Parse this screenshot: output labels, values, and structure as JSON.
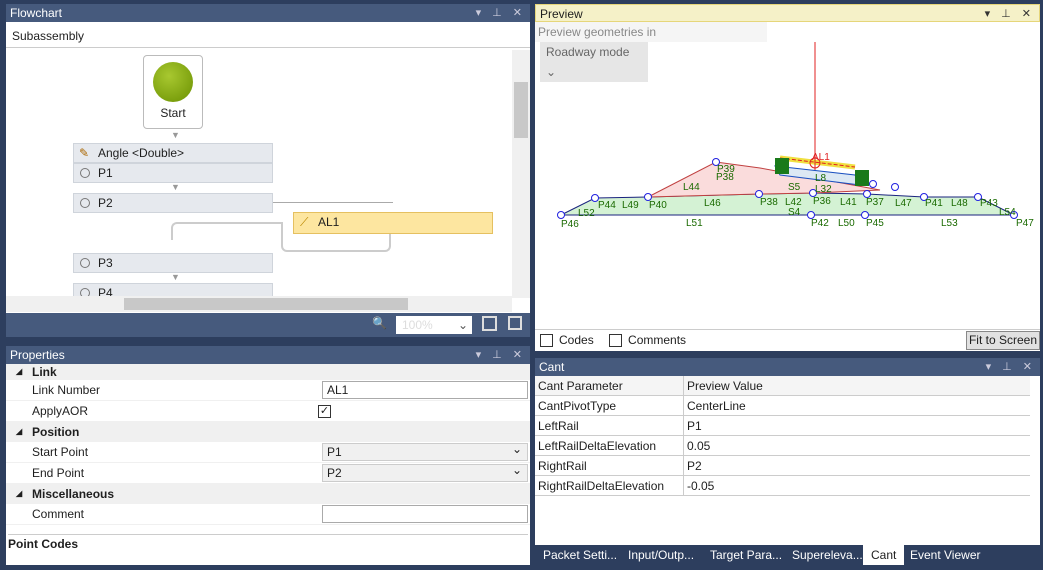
{
  "flowchart": {
    "title": "Flowchart",
    "header": "Subassembly",
    "start": "Start",
    "nodes": [
      "Angle <Double>",
      "P1",
      "P2",
      "P3",
      "P4"
    ],
    "link": "AL1",
    "zoom": "100%"
  },
  "properties": {
    "title": "Properties",
    "cats": [
      "Link",
      "Position",
      "Miscellaneous"
    ],
    "rows": {
      "link_number": {
        "label": "Link Number",
        "value": "AL1"
      },
      "apply_aor": {
        "label": "ApplyAOR",
        "checked": true
      },
      "start_point": {
        "label": "Start Point",
        "value": "P1"
      },
      "end_point": {
        "label": "End Point",
        "value": "P2"
      },
      "comment": {
        "label": "Comment",
        "value": ""
      }
    },
    "footer": "Point Codes"
  },
  "preview": {
    "title": "Preview",
    "geom_label": "Preview geometries in",
    "mode": "Roadway mode",
    "codes": "Codes",
    "comments": "Comments",
    "fit": "Fit to Screen",
    "labels": [
      "AL1",
      "P39",
      "P38",
      "L44",
      "S5",
      "L8",
      "L32",
      "P44",
      "L49",
      "P40",
      "L46",
      "P38",
      "L42",
      "P36",
      "L41",
      "P37",
      "L47",
      "P41",
      "L48",
      "P43",
      "L52",
      "S4",
      "L54",
      "P46",
      "L51",
      "P42",
      "L50",
      "P45",
      "L53",
      "P47"
    ]
  },
  "cant": {
    "title": "Cant",
    "headers": [
      "Cant Parameter",
      "Preview Value"
    ],
    "rows": [
      [
        "CantPivotType",
        "CenterLine"
      ],
      [
        "LeftRail",
        "P1"
      ],
      [
        "LeftRailDeltaElevation",
        "0.05"
      ],
      [
        "RightRail",
        "P2"
      ],
      [
        "RightRailDeltaElevation",
        "-0.05"
      ]
    ]
  },
  "tabs": [
    "Packet Setti...",
    "Input/Outp...",
    "Target Para...",
    "Supereleva...",
    "Cant",
    "Event Viewer"
  ],
  "active_tab": "Cant",
  "colors": {
    "accent": "#465a7d",
    "start": "#7aa010",
    "link": "#fde6a0"
  }
}
